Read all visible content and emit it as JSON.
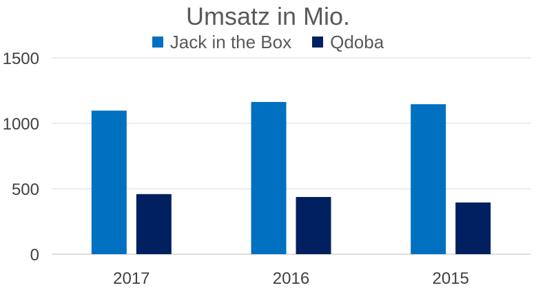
{
  "chart_data": {
    "type": "bar",
    "title": "Umsatz in Mio.",
    "categories": [
      "2017",
      "2016",
      "2015"
    ],
    "series": [
      {
        "name": "Jack in the Box",
        "values": [
          1097,
          1163,
          1146
        ]
      },
      {
        "name": "Qdoba",
        "values": [
          459,
          437,
          395
        ]
      }
    ],
    "ylim": [
      0,
      1500
    ],
    "yticks": [
      0,
      500,
      1000,
      1500
    ],
    "grid": true,
    "legend_position": "top",
    "colors": [
      "#0070c0",
      "#002060"
    ]
  }
}
